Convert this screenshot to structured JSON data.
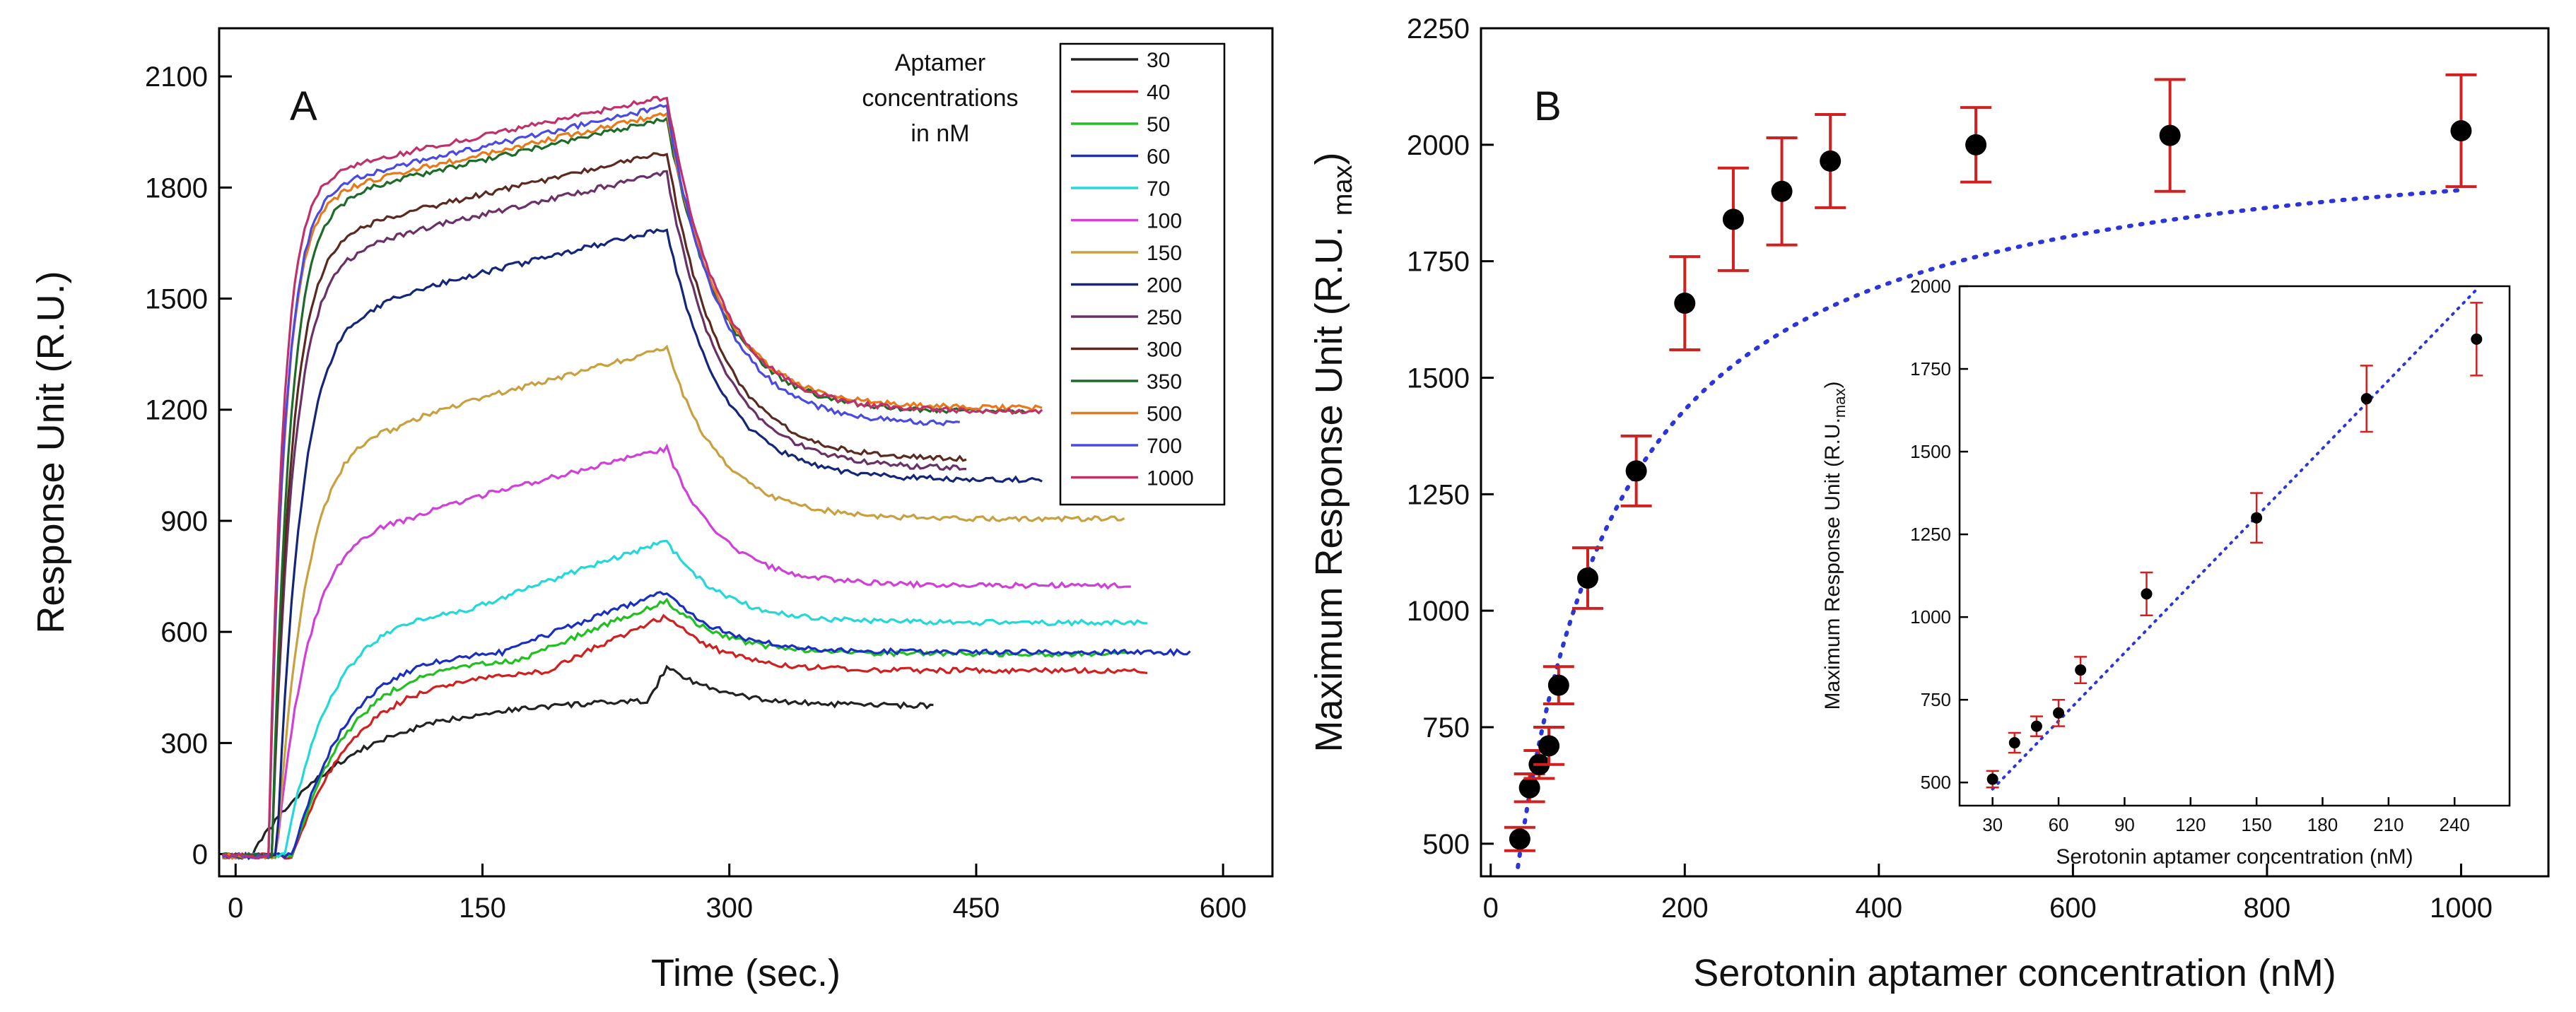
{
  "chart_data": [
    {
      "panel": "A",
      "type": "line",
      "xlabel": "Time (sec.)",
      "ylabel": "Response Unit (R.U.)",
      "xlim": [
        -10,
        630
      ],
      "ylim": [
        -60,
        2230
      ],
      "xticks": [
        0,
        150,
        300,
        450,
        600
      ],
      "yticks": [
        0,
        300,
        600,
        900,
        1200,
        1500,
        1800,
        2100
      ],
      "legend": {
        "title": "Aptamer concentrations in nM",
        "title_lines": [
          "Aptamer",
          "concentrations",
          "in nM"
        ],
        "position": "top-right"
      },
      "series": [
        {
          "name": "30",
          "color": "#222222",
          "injection_start": 10,
          "plateau": 420,
          "peak": 510,
          "final": 400,
          "tau": 60,
          "end": 425
        },
        {
          "name": "40",
          "color": "#d02020",
          "injection_start": 35,
          "plateau": 500,
          "peak": 645,
          "final": 495,
          "tau": 38,
          "end": 555
        },
        {
          "name": "50",
          "color": "#20c020",
          "injection_start": 35,
          "plateau": 530,
          "peak": 685,
          "final": 540,
          "tau": 34,
          "end": 545
        },
        {
          "name": "60",
          "color": "#1a2ec0",
          "injection_start": 35,
          "plateau": 555,
          "peak": 710,
          "final": 545,
          "tau": 32,
          "end": 580
        },
        {
          "name": "70",
          "color": "#22d8d8",
          "injection_start": 30,
          "plateau": 670,
          "peak": 845,
          "final": 625,
          "tau": 28,
          "end": 555
        },
        {
          "name": "100",
          "color": "#d040d8",
          "injection_start": 25,
          "plateau": 920,
          "peak": 1095,
          "final": 725,
          "tau": 20,
          "end": 545
        },
        {
          "name": "150",
          "color": "#c8a040",
          "injection_start": 25,
          "plateau": 1170,
          "peak": 1365,
          "final": 905,
          "tau": 18,
          "end": 540
        },
        {
          "name": "200",
          "color": "#14267a",
          "injection_start": 25,
          "plateau": 1500,
          "peak": 1690,
          "final": 1010,
          "tau": 15,
          "end": 490
        },
        {
          "name": "250",
          "color": "#6a3068",
          "injection_start": 22,
          "plateau": 1650,
          "peak": 1840,
          "final": 1040,
          "tau": 13,
          "end": 445
        },
        {
          "name": "300",
          "color": "#5a2a20",
          "injection_start": 22,
          "plateau": 1700,
          "peak": 1895,
          "final": 1065,
          "tau": 12,
          "end": 445
        },
        {
          "name": "350",
          "color": "#1e6a28",
          "injection_start": 22,
          "plateau": 1790,
          "peak": 1985,
          "final": 1195,
          "tau": 11,
          "end": 480
        },
        {
          "name": "500",
          "color": "#e87818",
          "injection_start": 20,
          "plateau": 1800,
          "peak": 2000,
          "final": 1205,
          "tau": 10,
          "end": 490
        },
        {
          "name": "700",
          "color": "#4a4ae0",
          "injection_start": 20,
          "plateau": 1820,
          "peak": 2020,
          "final": 1160,
          "tau": 10,
          "end": 440
        },
        {
          "name": "1000",
          "color": "#c0306a",
          "injection_start": 20,
          "plateau": 1850,
          "peak": 2045,
          "final": 1195,
          "tau": 9,
          "end": 490
        }
      ]
    },
    {
      "panel": "B",
      "type": "scatter",
      "xlabel": "Serotonin aptamer concentration (nM)",
      "ylabel": "Maximum Response Unit (R.U. max)",
      "ylabel_main": "Maximum Response Unit (R.U. ",
      "ylabel_sub": "max",
      "ylabel_close": ")",
      "xlim": [
        -10,
        1090
      ],
      "ylim": [
        430,
        2250
      ],
      "xticks": [
        0,
        200,
        400,
        600,
        800,
        1000
      ],
      "yticks": [
        500,
        750,
        1000,
        1250,
        1500,
        1750,
        2000,
        2250
      ],
      "x": [
        30,
        40,
        50,
        60,
        70,
        100,
        150,
        200,
        250,
        300,
        350,
        500,
        700,
        1000
      ],
      "y": [
        510,
        620,
        670,
        710,
        840,
        1070,
        1300,
        1660,
        1840,
        1900,
        1965,
        2000,
        2020,
        2030
      ],
      "err": [
        25,
        30,
        30,
        40,
        40,
        65,
        75,
        100,
        110,
        115,
        100,
        80,
        120,
        120
      ],
      "fit": {
        "type": "saturation",
        "Bmax": 2070,
        "Kd": 112,
        "x0": 28,
        "y0": 450
      },
      "point_color": "#000000",
      "error_color": "#d02020",
      "fit_color": "#2b35d8"
    },
    {
      "panel": "B-inset",
      "type": "scatter",
      "xlabel": "Serotonin aptamer concentration (nM)",
      "ylabel": "Maximum Response Unit (R.U.max)",
      "ylabel_main": "Maximum Response Unit (R.U.",
      "ylabel_sub": "max",
      "ylabel_close": ")",
      "xlim": [
        15,
        265
      ],
      "ylim": [
        430,
        2000
      ],
      "xticks": [
        30,
        60,
        90,
        120,
        150,
        180,
        210,
        240
      ],
      "yticks": [
        500,
        750,
        1000,
        1250,
        1500,
        1750,
        2000
      ],
      "x": [
        30,
        40,
        50,
        60,
        70,
        100,
        150,
        200,
        250
      ],
      "y": [
        510,
        620,
        670,
        710,
        840,
        1070,
        1300,
        1660,
        1840
      ],
      "err": [
        25,
        30,
        30,
        40,
        40,
        65,
        75,
        100,
        110
      ],
      "fit": {
        "type": "linear",
        "x0": 30,
        "y0": 480,
        "x1": 250,
        "y1": 1990
      },
      "point_color": "#000000",
      "error_color": "#d02020",
      "fit_color": "#2b35d8"
    }
  ]
}
